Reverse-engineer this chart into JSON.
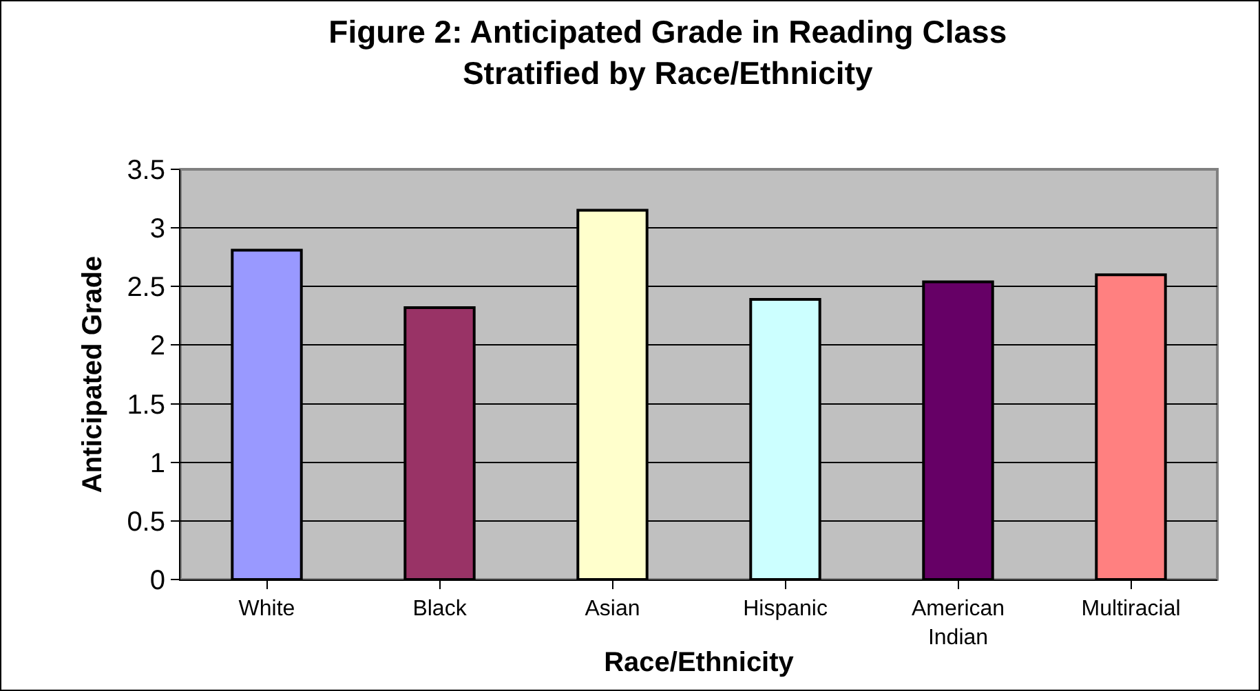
{
  "chart_data": {
    "type": "bar",
    "title": "Figure 2: Anticipated Grade in Reading Class\nStratified by Race/Ethnicity",
    "xlabel": "Race/Ethnicity",
    "ylabel": "Anticipated Grade",
    "categories": [
      "White",
      "Black",
      "Asian",
      "Hispanic",
      "American Indian",
      "Multiracial"
    ],
    "values": [
      2.81,
      2.32,
      3.15,
      2.39,
      2.54,
      2.6
    ],
    "colors": [
      "#9999ff",
      "#993366",
      "#ffffcc",
      "#ccffff",
      "#660066",
      "#ff8080"
    ],
    "ylim": [
      0,
      3.5
    ],
    "yticks": [
      0,
      0.5,
      1,
      1.5,
      2,
      2.5,
      3,
      3.5
    ],
    "grid": "y"
  }
}
